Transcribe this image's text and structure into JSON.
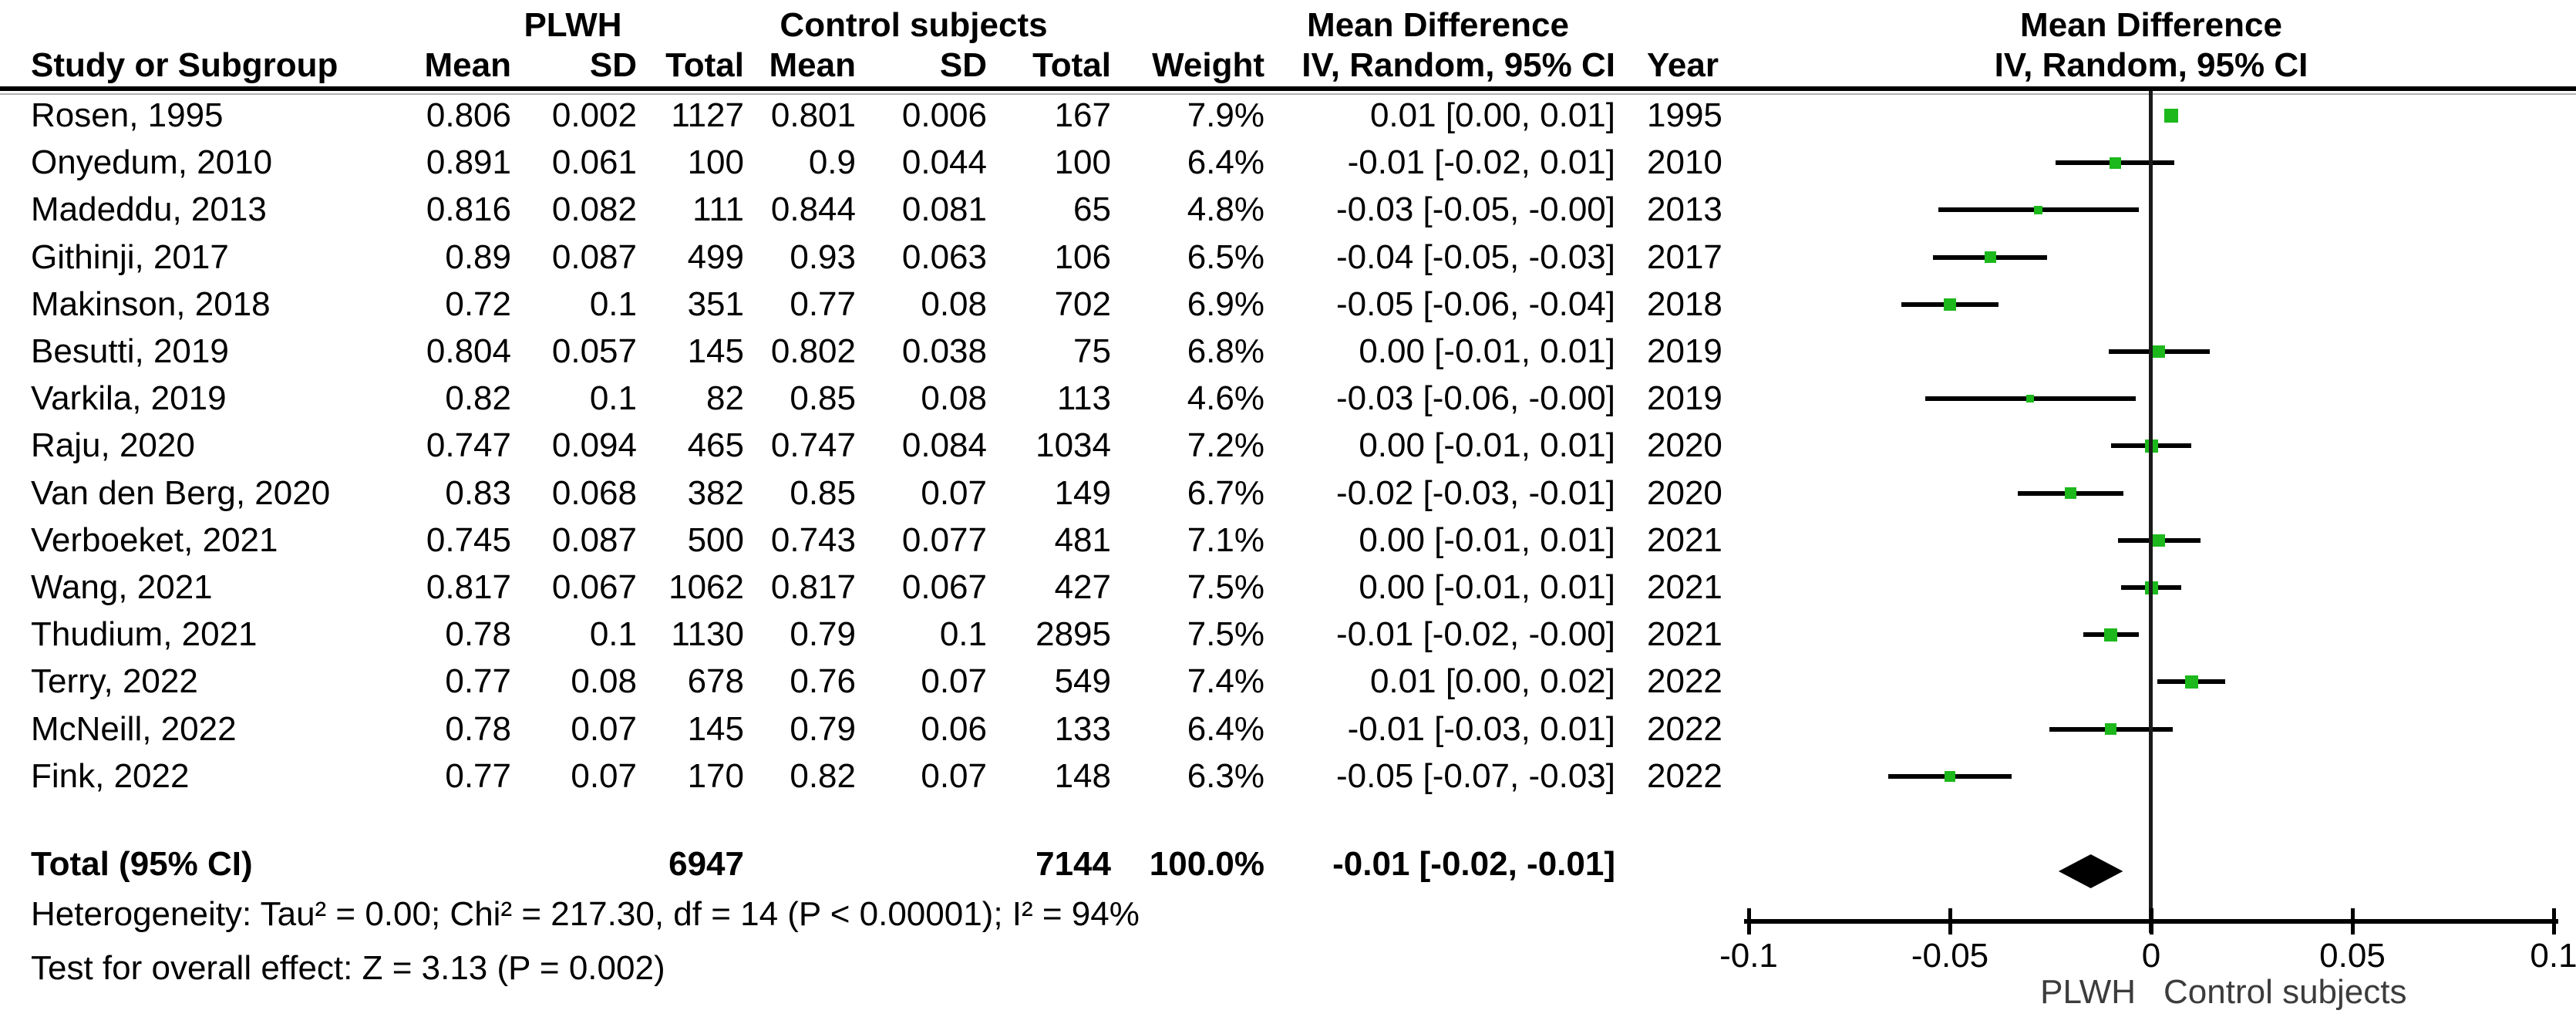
{
  "header": {
    "group_plwh": "PLWH",
    "group_control": "Control subjects",
    "group_md_text": "Mean Difference",
    "group_md_plot": "Mean Difference",
    "col_study": "Study or Subgroup",
    "col_mean1": "Mean",
    "col_sd1": "SD",
    "col_total1": "Total",
    "col_mean2": "Mean",
    "col_sd2": "SD",
    "col_total2": "Total",
    "col_weight": "Weight",
    "col_ci": "IV, Random, 95% CI",
    "col_year": "Year",
    "col_ci_plot": "IV, Random, 95% CI"
  },
  "table": {
    "rows": [
      {
        "study": "Rosen, 1995",
        "mean1": "0.806",
        "sd1": "0.002",
        "total1": "1127",
        "mean2": "0.801",
        "sd2": "0.006",
        "total2": "167",
        "weight": "7.9%",
        "weight_pct": 7.9,
        "ci": "0.01 [0.00, 0.01]",
        "year": "1995",
        "md": 0.005,
        "lo": 0.004,
        "hi": 0.006
      },
      {
        "study": "Onyedum, 2010",
        "mean1": "0.891",
        "sd1": "0.061",
        "total1": "100",
        "mean2": "0.9",
        "sd2": "0.044",
        "total2": "100",
        "weight": "6.4%",
        "weight_pct": 6.4,
        "ci": "-0.01 [-0.02, 0.01]",
        "year": "2010",
        "md": -0.009,
        "lo": -0.0237,
        "hi": 0.0057
      },
      {
        "study": "Madeddu, 2013",
        "mean1": "0.816",
        "sd1": "0.082",
        "total1": "111",
        "mean2": "0.844",
        "sd2": "0.081",
        "total2": "65",
        "weight": "4.8%",
        "weight_pct": 4.8,
        "ci": "-0.03 [-0.05, -0.00]",
        "year": "2013",
        "md": -0.028,
        "lo": -0.0529,
        "hi": -0.0031
      },
      {
        "study": "Githinji, 2017",
        "mean1": "0.89",
        "sd1": "0.087",
        "total1": "499",
        "mean2": "0.93",
        "sd2": "0.063",
        "total2": "106",
        "weight": "6.5%",
        "weight_pct": 6.5,
        "ci": "-0.04 [-0.05, -0.03]",
        "year": "2017",
        "md": -0.04,
        "lo": -0.0542,
        "hi": -0.0258
      },
      {
        "study": "Makinson, 2018",
        "mean1": "0.72",
        "sd1": "0.1",
        "total1": "351",
        "mean2": "0.77",
        "sd2": "0.08",
        "total2": "702",
        "weight": "6.9%",
        "weight_pct": 6.9,
        "ci": "-0.05 [-0.06, -0.04]",
        "year": "2018",
        "md": -0.05,
        "lo": -0.062,
        "hi": -0.038
      },
      {
        "study": "Besutti, 2019",
        "mean1": "0.804",
        "sd1": "0.057",
        "total1": "145",
        "mean2": "0.802",
        "sd2": "0.038",
        "total2": "75",
        "weight": "6.8%",
        "weight_pct": 6.8,
        "ci": "0.00 [-0.01, 0.01]",
        "year": "2019",
        "md": 0.002,
        "lo": -0.0106,
        "hi": 0.0146
      },
      {
        "study": "Varkila, 2019",
        "mean1": "0.82",
        "sd1": "0.1",
        "total1": "82",
        "mean2": "0.85",
        "sd2": "0.08",
        "total2": "113",
        "weight": "4.6%",
        "weight_pct": 4.6,
        "ci": "-0.03 [-0.06, -0.00]",
        "year": "2019",
        "md": -0.03,
        "lo": -0.0562,
        "hi": -0.0038
      },
      {
        "study": "Raju, 2020",
        "mean1": "0.747",
        "sd1": "0.094",
        "total1": "465",
        "mean2": "0.747",
        "sd2": "0.084",
        "total2": "1034",
        "weight": "7.2%",
        "weight_pct": 7.2,
        "ci": "0.00 [-0.01, 0.01]",
        "year": "2020",
        "md": 0.0,
        "lo": -0.01,
        "hi": 0.01
      },
      {
        "study": "Van den Berg, 2020",
        "mean1": "0.83",
        "sd1": "0.068",
        "total1": "382",
        "mean2": "0.85",
        "sd2": "0.07",
        "total2": "149",
        "weight": "6.7%",
        "weight_pct": 6.7,
        "ci": "-0.02 [-0.03, -0.01]",
        "year": "2020",
        "md": -0.02,
        "lo": -0.0332,
        "hi": -0.0068
      },
      {
        "study": "Verboeket, 2021",
        "mean1": "0.745",
        "sd1": "0.087",
        "total1": "500",
        "mean2": "0.743",
        "sd2": "0.077",
        "total2": "481",
        "weight": "7.1%",
        "weight_pct": 7.1,
        "ci": "0.00 [-0.01, 0.01]",
        "year": "2021",
        "md": 0.002,
        "lo": -0.0083,
        "hi": 0.0123
      },
      {
        "study": "Wang, 2021",
        "mean1": "0.817",
        "sd1": "0.067",
        "total1": "1062",
        "mean2": "0.817",
        "sd2": "0.067",
        "total2": "427",
        "weight": "7.5%",
        "weight_pct": 7.5,
        "ci": "0.00 [-0.01, 0.01]",
        "year": "2021",
        "md": 0.0,
        "lo": -0.0075,
        "hi": 0.0075
      },
      {
        "study": "Thudium, 2021",
        "mean1": "0.78",
        "sd1": "0.1",
        "total1": "1130",
        "mean2": "0.79",
        "sd2": "0.1",
        "total2": "2895",
        "weight": "7.5%",
        "weight_pct": 7.5,
        "ci": "-0.01 [-0.02, -0.00]",
        "year": "2021",
        "md": -0.01,
        "lo": -0.0169,
        "hi": -0.0031
      },
      {
        "study": "Terry, 2022",
        "mean1": "0.77",
        "sd1": "0.08",
        "total1": "678",
        "mean2": "0.76",
        "sd2": "0.07",
        "total2": "549",
        "weight": "7.4%",
        "weight_pct": 7.4,
        "ci": "0.01 [0.00, 0.02]",
        "year": "2022",
        "md": 0.01,
        "lo": 0.0016,
        "hi": 0.0184
      },
      {
        "study": "McNeill, 2022",
        "mean1": "0.78",
        "sd1": "0.07",
        "total1": "145",
        "mean2": "0.79",
        "sd2": "0.06",
        "total2": "133",
        "weight": "6.4%",
        "weight_pct": 6.4,
        "ci": "-0.01 [-0.03, 0.01]",
        "year": "2022",
        "md": -0.01,
        "lo": -0.0253,
        "hi": 0.0053
      },
      {
        "study": "Fink, 2022",
        "mean1": "0.77",
        "sd1": "0.07",
        "total1": "170",
        "mean2": "0.82",
        "sd2": "0.07",
        "total2": "148",
        "weight": "6.3%",
        "weight_pct": 6.3,
        "ci": "-0.05 [-0.07, -0.03]",
        "year": "2022",
        "md": -0.05,
        "lo": -0.0654,
        "hi": -0.0346
      }
    ],
    "total": {
      "label": "Total (95% CI)",
      "total1": "6947",
      "total2": "7144",
      "weight": "100.0%",
      "ci": "-0.01 [-0.02, -0.01]",
      "md": -0.015,
      "lo": -0.023,
      "hi": -0.007
    }
  },
  "footer": {
    "heterogeneity": "Heterogeneity: Tau² = 0.00; Chi² = 217.30, df = 14 (P < 0.00001); I² = 94%",
    "overall_effect": "Test for overall effect: Z = 3.13 (P = 0.002)"
  },
  "chart_data": {
    "type": "scatter",
    "subtype": "forest-plot",
    "title": "Mean Difference — IV, Random, 95% CI",
    "xlabel_left": "PLWH",
    "xlabel_right": "Control subjects",
    "xlim": [
      -0.1,
      0.1
    ],
    "axis_ticks": [
      "-0.1",
      "-0.05",
      "0",
      "0.05",
      "0.1"
    ],
    "axis_tick_values": [
      -0.1,
      -0.05,
      0,
      0.05,
      0.1
    ],
    "grid": false,
    "legend_position": "none",
    "series": [
      {
        "study": "Rosen, 1995",
        "md": 0.005,
        "lo": 0.004,
        "hi": 0.006,
        "weight_pct": 7.9
      },
      {
        "study": "Onyedum, 2010",
        "md": -0.009,
        "lo": -0.0237,
        "hi": 0.0057,
        "weight_pct": 6.4
      },
      {
        "study": "Madeddu, 2013",
        "md": -0.028,
        "lo": -0.0529,
        "hi": -0.0031,
        "weight_pct": 4.8
      },
      {
        "study": "Githinji, 2017",
        "md": -0.04,
        "lo": -0.0542,
        "hi": -0.0258,
        "weight_pct": 6.5
      },
      {
        "study": "Makinson, 2018",
        "md": -0.05,
        "lo": -0.062,
        "hi": -0.038,
        "weight_pct": 6.9
      },
      {
        "study": "Besutti, 2019",
        "md": 0.002,
        "lo": -0.0106,
        "hi": 0.0146,
        "weight_pct": 6.8
      },
      {
        "study": "Varkila, 2019",
        "md": -0.03,
        "lo": -0.0562,
        "hi": -0.0038,
        "weight_pct": 4.6
      },
      {
        "study": "Raju, 2020",
        "md": 0.0,
        "lo": -0.01,
        "hi": 0.01,
        "weight_pct": 7.2
      },
      {
        "study": "Van den Berg, 2020",
        "md": -0.02,
        "lo": -0.0332,
        "hi": -0.0068,
        "weight_pct": 6.7
      },
      {
        "study": "Verboeket, 2021",
        "md": 0.002,
        "lo": -0.0083,
        "hi": 0.0123,
        "weight_pct": 7.1
      },
      {
        "study": "Wang, 2021",
        "md": 0.0,
        "lo": -0.0075,
        "hi": 0.0075,
        "weight_pct": 7.5
      },
      {
        "study": "Thudium, 2021",
        "md": -0.01,
        "lo": -0.0169,
        "hi": -0.0031,
        "weight_pct": 7.5
      },
      {
        "study": "Terry, 2022",
        "md": 0.01,
        "lo": 0.0016,
        "hi": 0.0184,
        "weight_pct": 7.4
      },
      {
        "study": "McNeill, 2022",
        "md": -0.01,
        "lo": -0.0253,
        "hi": 0.0053,
        "weight_pct": 6.4
      },
      {
        "study": "Fink, 2022",
        "md": -0.05,
        "lo": -0.0654,
        "hi": -0.0346,
        "weight_pct": 6.3
      }
    ],
    "pooled": {
      "label": "Total (95% CI)",
      "md": -0.015,
      "lo": -0.023,
      "hi": -0.007,
      "ci_label": "-0.01 [-0.02, -0.01]"
    }
  },
  "colors": {
    "marker_green": "#1cb81c",
    "line_black": "#000000",
    "favour_text": "#3c3c3c"
  }
}
